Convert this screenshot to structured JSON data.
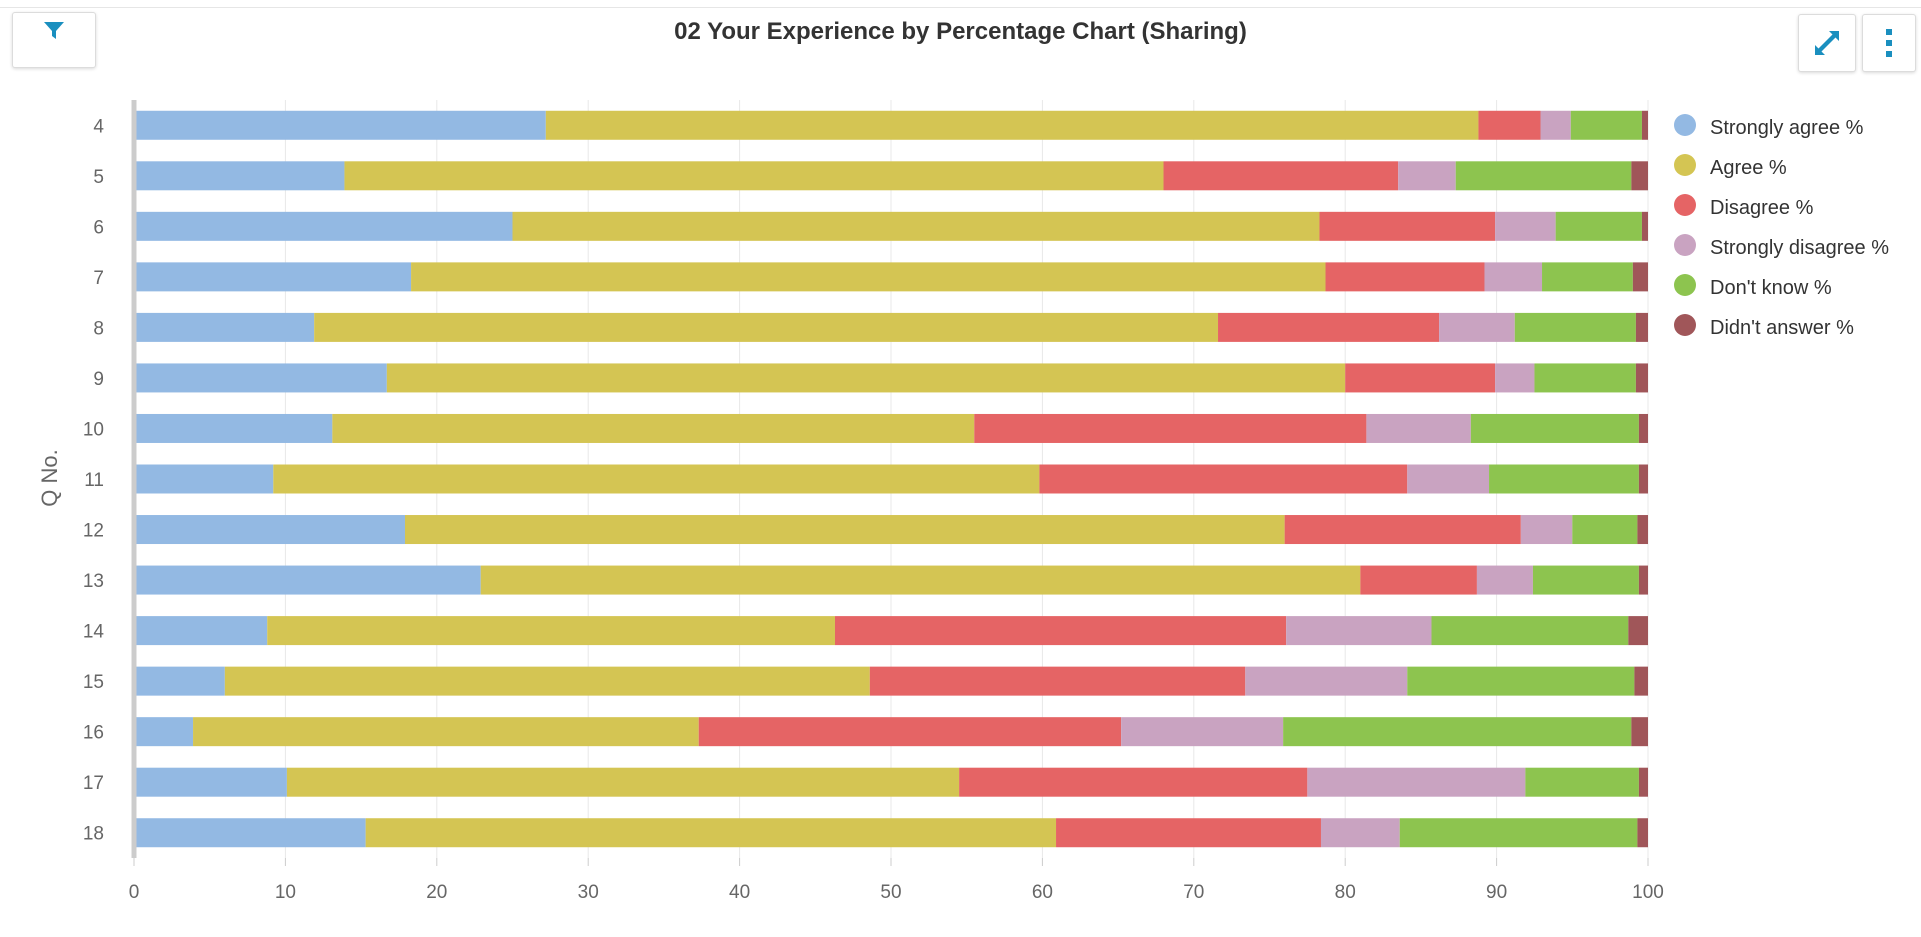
{
  "header": {
    "title": "02 Your Experience by Percentage Chart (Sharing)"
  },
  "toolbar": {
    "filter_icon": "filter-icon",
    "expand_icon": "expand-icon",
    "menu_icon": "more-vertical-icon",
    "accent": "#1a8fbf"
  },
  "chart_data": {
    "type": "bar",
    "orientation": "horizontal",
    "stacked": true,
    "title": "02 Your Experience by Percentage Chart (Sharing)",
    "ylabel": "Q No.",
    "xlabel": "",
    "xlim": [
      0,
      100
    ],
    "xticks": [
      0,
      10,
      20,
      30,
      40,
      50,
      60,
      70,
      80,
      90,
      100
    ],
    "grid": true,
    "legend_position": "right",
    "categories": [
      "4",
      "5",
      "6",
      "7",
      "8",
      "9",
      "10",
      "11",
      "12",
      "13",
      "14",
      "15",
      "16",
      "17",
      "18"
    ],
    "series": [
      {
        "name": "Strongly agree %",
        "color": "#93b9e3",
        "values": [
          27.2,
          13.9,
          25.0,
          18.3,
          11.9,
          16.7,
          13.1,
          9.2,
          17.9,
          22.9,
          8.8,
          6.0,
          3.9,
          10.1,
          15.3
        ]
      },
      {
        "name": "Agree %",
        "color": "#d4c553",
        "values": [
          61.6,
          54.1,
          53.3,
          60.4,
          59.7,
          63.3,
          42.4,
          50.6,
          58.1,
          58.1,
          37.5,
          42.6,
          33.4,
          44.4,
          45.6
        ]
      },
      {
        "name": "Disagree %",
        "color": "#e56465",
        "values": [
          4.1,
          15.5,
          11.6,
          10.5,
          14.6,
          9.9,
          25.9,
          24.3,
          15.6,
          7.7,
          29.8,
          24.8,
          27.9,
          23.0,
          17.5
        ]
      },
      {
        "name": "Strongly disagree %",
        "color": "#c9a3c1",
        "values": [
          2.0,
          3.8,
          4.0,
          3.8,
          5.0,
          2.6,
          6.9,
          5.4,
          3.4,
          3.7,
          9.6,
          10.7,
          10.7,
          14.4,
          5.2
        ]
      },
      {
        "name": "Don't know %",
        "color": "#8dc44f",
        "values": [
          4.7,
          11.6,
          5.7,
          6.0,
          8.0,
          6.7,
          11.1,
          9.9,
          4.3,
          7.0,
          13.0,
          15.0,
          23.0,
          7.5,
          15.7
        ]
      },
      {
        "name": "Didn't answer %",
        "color": "#a05659",
        "values": [
          0.4,
          1.1,
          0.4,
          1.0,
          0.8,
          0.8,
          0.6,
          0.6,
          0.7,
          0.6,
          1.3,
          0.9,
          1.1,
          0.6,
          0.7
        ]
      }
    ]
  }
}
